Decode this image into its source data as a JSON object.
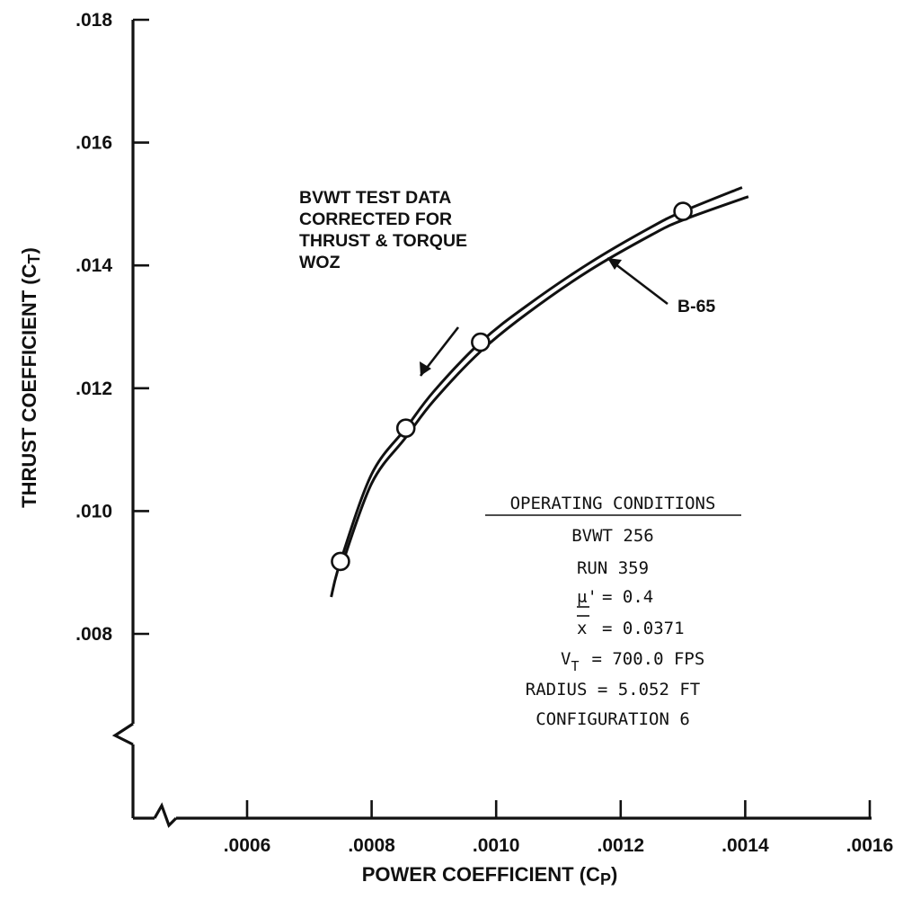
{
  "chart_data": {
    "type": "line",
    "xlabel": "POWER COEFFICIENT (C",
    "xlabel_sub": "P",
    "xlabel_close": ")",
    "ylabel": "THRUST COEFFICIENT (C",
    "ylabel_sub": "T",
    "ylabel_close": ")",
    "x_ticks": [
      {
        "value": 0.0006,
        "label": ".0006"
      },
      {
        "value": 0.0008,
        "label": ".0008"
      },
      {
        "value": 0.001,
        "label": ".0010"
      },
      {
        "value": 0.0012,
        "label": ".0012"
      },
      {
        "value": 0.0014,
        "label": ".0014"
      },
      {
        "value": 0.0016,
        "label": ".0016"
      }
    ],
    "y_ticks": [
      {
        "value": 0.008,
        "label": ".008"
      },
      {
        "value": 0.01,
        "label": ".010"
      },
      {
        "value": 0.012,
        "label": ".012"
      },
      {
        "value": 0.014,
        "label": ".014"
      },
      {
        "value": 0.016,
        "label": ".016"
      },
      {
        "value": 0.018,
        "label": ".018"
      }
    ],
    "xlim": [
      0.0004,
      0.0016
    ],
    "ylim": [
      0.006,
      0.018
    ],
    "axis_breaks": true,
    "grid": false,
    "series": [
      {
        "name": "BVWT TEST DATA CORRECTED FOR THRUST & TORQUE WOZ",
        "style": "line-with-markers",
        "x": [
          0.000735,
          0.00075,
          0.0008,
          0.000855,
          0.0009,
          0.000975,
          0.00105,
          0.00115,
          0.00125,
          0.0013,
          0.001395
        ],
        "y": [
          0.0086,
          0.00918,
          0.0106,
          0.01135,
          0.01195,
          0.01275,
          0.01335,
          0.01404,
          0.01463,
          0.01488,
          0.01527
        ],
        "markers_x": [
          0.00075,
          0.000855,
          0.000975,
          0.0013
        ],
        "markers_y": [
          0.00918,
          0.01135,
          0.01275,
          0.01488
        ]
      },
      {
        "name": "B-65",
        "style": "line",
        "x": [
          0.00075,
          0.0008,
          0.000855,
          0.0009,
          0.000975,
          0.00105,
          0.00115,
          0.00125,
          0.0013,
          0.001405
        ],
        "y": [
          0.00905,
          0.01045,
          0.0112,
          0.0118,
          0.0126,
          0.01322,
          0.01392,
          0.0145,
          0.01474,
          0.01512
        ]
      }
    ],
    "annotations": {
      "data_label": [
        "BVWT TEST DATA",
        "CORRECTED FOR",
        "THRUST & TORQUE",
        "WOZ"
      ],
      "curve_label": "B-65"
    },
    "operating_conditions": {
      "heading": "OPERATING CONDITIONS",
      "facility": "BVWT 256",
      "run": "RUN 359",
      "mu_symbol": "μ'",
      "mu_value": "= 0.4",
      "x_symbol": "x",
      "x_value": "= 0.0371",
      "vt_symbol": "V",
      "vt_sub": "T",
      "vt_value": "= 700.0 FPS",
      "radius": "RADIUS = 5.052 FT",
      "configuration": "CONFIGURATION 6"
    }
  }
}
